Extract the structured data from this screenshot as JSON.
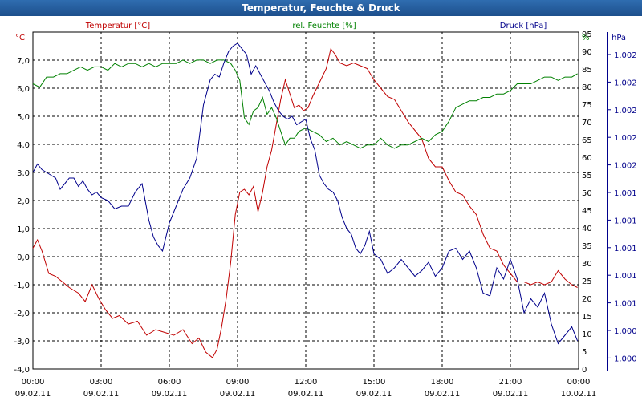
{
  "title": "Temperatur, Feuchte & Druck",
  "chart_data": {
    "type": "line",
    "title": "Temperatur, Feuchte & Druck",
    "grid": true,
    "x_tick_labels": [
      {
        "time": "00:00",
        "date": "09.02.11"
      },
      {
        "time": "03:00",
        "date": "09.02.11"
      },
      {
        "time": "06:00",
        "date": "09.02.11"
      },
      {
        "time": "09:00",
        "date": "09.02.11"
      },
      {
        "time": "12:00",
        "date": "09.02.11"
      },
      {
        "time": "15:00",
        "date": "09.02.11"
      },
      {
        "time": "18:00",
        "date": "09.02.11"
      },
      {
        "time": "21:00",
        "date": "09.02.11"
      },
      {
        "time": "00:00",
        "date": "10.02.11"
      }
    ],
    "axes": {
      "temperature": {
        "label": "Temperatur [°C]",
        "unit": "°C",
        "ylim": [
          -4,
          8
        ],
        "ticks": [
          "7,0",
          "6,0",
          "5,0",
          "4,0",
          "3,0",
          "2,0",
          "1,0",
          "0,0",
          "-1,0",
          "-2,0",
          "-3,0",
          "-4,0"
        ],
        "color": "#c00000"
      },
      "humidity": {
        "label": "rel. Feuchte [%]",
        "unit": "%",
        "ylim": [
          0,
          100
        ],
        "ticks": [
          "95",
          "90",
          "85",
          "80",
          "75",
          "70",
          "65",
          "60",
          "55",
          "50",
          "45",
          "40",
          "35",
          "30",
          "25",
          "20",
          "15",
          "10",
          "5",
          "0"
        ],
        "color": "#008000"
      },
      "pressure": {
        "label": "Druck [hPa]",
        "unit": "hPa",
        "ylim": [
          0,
          12
        ],
        "ticks": [
          "1.002",
          "1.002",
          "1.002",
          "1.002",
          "1.002",
          "1.001",
          "1.001",
          "1.001",
          "1.001",
          "1.001",
          "1.000",
          "1.000"
        ],
        "color": "#00008b"
      }
    },
    "series": [
      {
        "name": "Temperatur [°C]",
        "axis": "temperature",
        "color": "#c00000",
        "x_hours": [
          0,
          0.2,
          0.4,
          0.7,
          1,
          1.3,
          1.6,
          2,
          2.3,
          2.6,
          2.9,
          3.2,
          3.5,
          3.8,
          4.2,
          4.6,
          5,
          5.4,
          5.8,
          6.2,
          6.6,
          7,
          7.3,
          7.6,
          7.9,
          8.1,
          8.3,
          8.5,
          8.7,
          8.9,
          9.1,
          9.3,
          9.5,
          9.7,
          9.9,
          10.1,
          10.3,
          10.5,
          10.7,
          10.9,
          11.1,
          11.3,
          11.5,
          11.7,
          11.9,
          12.1,
          12.3,
          12.6,
          12.9,
          13.1,
          13.3,
          13.5,
          13.8,
          14.1,
          14.4,
          14.7,
          15,
          15.3,
          15.6,
          15.9,
          16.2,
          16.5,
          16.8,
          17.1,
          17.4,
          17.7,
          18,
          18.3,
          18.6,
          18.9,
          19.2,
          19.5,
          19.8,
          20.1,
          20.4,
          20.7,
          21,
          21.3,
          21.6,
          21.9,
          22.2,
          22.5,
          22.8,
          23.1,
          23.4,
          23.7,
          23.95
        ],
        "values": [
          0.3,
          0.6,
          0.2,
          -0.6,
          -0.7,
          -0.9,
          -1.1,
          -1.3,
          -1.6,
          -1.0,
          -1.5,
          -1.9,
          -2.2,
          -2.1,
          -2.4,
          -2.3,
          -2.8,
          -2.6,
          -2.7,
          -2.8,
          -2.6,
          -3.1,
          -2.9,
          -3.4,
          -3.6,
          -3.3,
          -2.5,
          -1.5,
          -0.2,
          1.5,
          2.3,
          2.4,
          2.2,
          2.5,
          1.6,
          2.3,
          3.2,
          3.8,
          4.7,
          5.6,
          6.3,
          5.8,
          5.3,
          5.4,
          5.2,
          5.3,
          5.7,
          6.2,
          6.7,
          7.4,
          7.2,
          6.9,
          6.8,
          6.9,
          6.8,
          6.7,
          6.3,
          6.0,
          5.7,
          5.6,
          5.2,
          4.8,
          4.5,
          4.2,
          3.5,
          3.2,
          3.2,
          2.7,
          2.3,
          2.2,
          1.8,
          1.5,
          0.8,
          0.3,
          0.2,
          -0.3,
          -0.6,
          -0.9,
          -0.9,
          -1.0,
          -0.9,
          -1.0,
          -0.9,
          -0.5,
          -0.8,
          -1.0,
          -1.1
        ]
      },
      {
        "name": "rel. Feuchte [%]",
        "axis": "humidity",
        "color": "#008000",
        "x_hours": [
          0,
          0.3,
          0.6,
          0.9,
          1.2,
          1.5,
          1.8,
          2.1,
          2.4,
          2.7,
          3,
          3.3,
          3.6,
          3.9,
          4.2,
          4.5,
          4.8,
          5.1,
          5.4,
          5.7,
          6,
          6.3,
          6.6,
          6.9,
          7.2,
          7.5,
          7.8,
          8.1,
          8.4,
          8.7,
          8.9,
          9.1,
          9.3,
          9.5,
          9.7,
          9.9,
          10.1,
          10.3,
          10.5,
          10.7,
          10.9,
          11.1,
          11.3,
          11.5,
          11.7,
          12,
          12.3,
          12.6,
          12.9,
          13.2,
          13.5,
          13.8,
          14.1,
          14.4,
          14.7,
          15,
          15.3,
          15.6,
          15.9,
          16.2,
          16.5,
          16.8,
          17.1,
          17.4,
          17.7,
          18,
          18.3,
          18.6,
          18.9,
          19.2,
          19.5,
          19.8,
          20.1,
          20.4,
          20.7,
          21,
          21.3,
          21.6,
          21.9,
          22.2,
          22.5,
          22.8,
          23.1,
          23.4,
          23.7,
          23.95
        ],
        "values": [
          84,
          83,
          86,
          86,
          87,
          87,
          88,
          89,
          88,
          89,
          89,
          88,
          90,
          89,
          90,
          90,
          89,
          90,
          89,
          90,
          90,
          90,
          91,
          90,
          91,
          91,
          90,
          91,
          91,
          90,
          88,
          85,
          74,
          72,
          76,
          77,
          80,
          75,
          77,
          74,
          70,
          66,
          68,
          68,
          70,
          71,
          70,
          69,
          67,
          68,
          66,
          67,
          66,
          65,
          66,
          66,
          68,
          66,
          65,
          66,
          66,
          67,
          68,
          67,
          69,
          70,
          73,
          77,
          78,
          79,
          79,
          80,
          80,
          81,
          81,
          82,
          84,
          84,
          84,
          85,
          86,
          86,
          85,
          86,
          86,
          87
        ]
      },
      {
        "name": "Druck [hPa]",
        "axis": "pressure",
        "color": "#00008b",
        "x_hours": [
          0,
          0.2,
          0.4,
          0.6,
          0.8,
          1,
          1.2,
          1.4,
          1.6,
          1.8,
          2,
          2.2,
          2.4,
          2.6,
          2.8,
          3,
          3.3,
          3.6,
          3.9,
          4.2,
          4.5,
          4.8,
          5.1,
          5.3,
          5.5,
          5.7,
          6,
          6.3,
          6.6,
          6.9,
          7.2,
          7.5,
          7.8,
          8,
          8.2,
          8.4,
          8.6,
          8.8,
          9,
          9.2,
          9.4,
          9.6,
          9.8,
          10,
          10.2,
          10.4,
          10.6,
          10.8,
          11,
          11.2,
          11.4,
          11.6,
          11.8,
          12,
          12.2,
          12.4,
          12.6,
          12.8,
          13,
          13.2,
          13.4,
          13.6,
          13.8,
          14,
          14.2,
          14.4,
          14.6,
          14.8,
          15,
          15.3,
          15.6,
          15.9,
          16.2,
          16.5,
          16.8,
          17.1,
          17.4,
          17.7,
          18,
          18.3,
          18.6,
          18.9,
          19.2,
          19.5,
          19.8,
          20.1,
          20.4,
          20.7,
          21,
          21.3,
          21.6,
          21.9,
          22.2,
          22.5,
          22.8,
          23.1,
          23.4,
          23.7,
          23.95
        ],
        "values": [
          7.0,
          7.3,
          7.1,
          7.0,
          6.9,
          6.8,
          6.4,
          6.6,
          6.8,
          6.8,
          6.5,
          6.7,
          6.4,
          6.2,
          6.3,
          6.1,
          6.0,
          5.7,
          5.8,
          5.8,
          6.3,
          6.6,
          5.3,
          4.7,
          4.4,
          4.2,
          5.2,
          5.8,
          6.4,
          6.8,
          7.5,
          9.4,
          10.3,
          10.5,
          10.4,
          10.9,
          11.3,
          11.5,
          11.6,
          11.4,
          11.2,
          10.5,
          10.8,
          10.5,
          10.2,
          9.9,
          9.5,
          9.2,
          9.0,
          8.9,
          9.0,
          8.7,
          8.8,
          8.9,
          8.2,
          7.8,
          6.9,
          6.6,
          6.4,
          6.3,
          6.0,
          5.4,
          5.0,
          4.8,
          4.3,
          4.1,
          4.4,
          4.9,
          4.1,
          3.9,
          3.4,
          3.6,
          3.9,
          3.6,
          3.3,
          3.5,
          3.8,
          3.3,
          3.6,
          4.2,
          4.3,
          3.9,
          4.2,
          3.6,
          2.7,
          2.6,
          3.6,
          3.2,
          3.9,
          3.2,
          2.0,
          2.5,
          2.2,
          2.7,
          1.6,
          0.9,
          1.2,
          1.5,
          1.0
        ]
      }
    ]
  }
}
